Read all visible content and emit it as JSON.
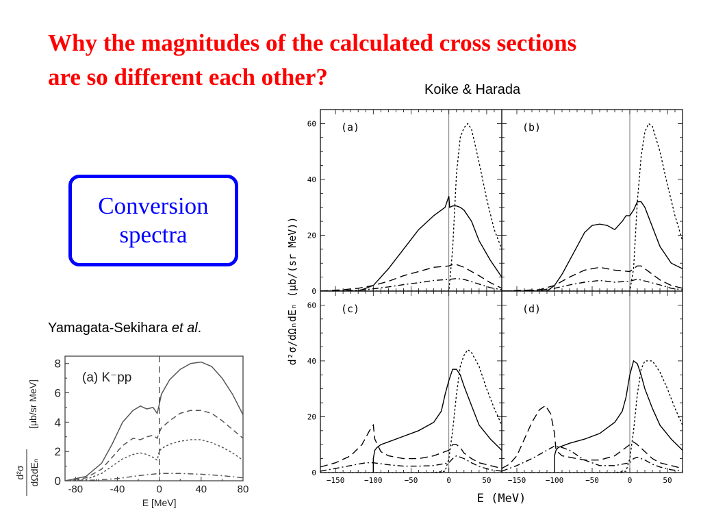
{
  "slide": {
    "title_line1": "Why the magnitudes of  the calculated cross sections",
    "title_line2": "are so different  each other?",
    "title_color": "#ff0000",
    "box_line1": "Conversion",
    "box_line2": "spectra",
    "box_color": "#0000ff",
    "credit_koike": "Koike & Harada",
    "credit_yamagata_main": "Yamagata-Sekihara ",
    "credit_yamagata_etal": "et al",
    "credit_yamagata_end": "."
  },
  "chart_data": [
    {
      "id": "koike-harada",
      "type": "line",
      "xlabel": "E (MeV)",
      "ylabel": "d²σ/dΩₙdEₙ (μb/(sr MeV))",
      "xlim": [
        -170,
        70
      ],
      "ylim": [
        0,
        65
      ],
      "xticks": [
        -150,
        -100,
        -50,
        0,
        50
      ],
      "yticks": [
        0,
        20,
        40,
        60
      ],
      "reference_line_x": 0,
      "grid": false,
      "panels": [
        {
          "label": "(a)",
          "series": [
            {
              "style": "solid",
              "x": [
                -170,
                -120,
                -100,
                -80,
                -60,
                -40,
                -20,
                -5,
                0,
                1,
                5,
                10,
                15,
                20,
                30,
                40,
                55,
                70
              ],
              "y": [
                0,
                0,
                2,
                8,
                15,
                22,
                27,
                30,
                34,
                30,
                30.5,
                30.5,
                30,
                29,
                25,
                18,
                11,
                5
              ]
            },
            {
              "style": "dashed",
              "x": [
                -170,
                -140,
                -120,
                -100,
                -80,
                -60,
                -40,
                -20,
                0,
                5,
                10,
                20,
                40,
                55,
                70
              ],
              "y": [
                0,
                0.5,
                1,
                2,
                3.5,
                5.5,
                7,
                8.5,
                9,
                9.5,
                9.5,
                8.5,
                5.5,
                3,
                1
              ]
            },
            {
              "style": "dashdot",
              "x": [
                -170,
                -120,
                -100,
                -80,
                -60,
                -40,
                -20,
                0,
                10,
                20,
                40,
                55,
                70
              ],
              "y": [
                0,
                0.3,
                0.8,
                1.5,
                2.3,
                3,
                3.8,
                4.2,
                4.5,
                4.2,
                2.5,
                1.2,
                0.5
              ]
            },
            {
              "style": "dotted",
              "x": [
                -170,
                0,
                5,
                10,
                15,
                20,
                25,
                30,
                40,
                50,
                60,
                70
              ],
              "y": [
                0,
                0,
                15,
                42,
                55,
                58.5,
                60,
                58,
                46,
                33,
                22,
                15
              ]
            }
          ]
        },
        {
          "label": "(b)",
          "series": [
            {
              "style": "solid",
              "x": [
                -170,
                -110,
                -100,
                -90,
                -80,
                -70,
                -60,
                -50,
                -40,
                -30,
                -20,
                -10,
                -5,
                0,
                5,
                10,
                15,
                20,
                30,
                40,
                55,
                70
              ],
              "y": [
                0,
                0,
                2,
                6,
                11,
                16,
                21,
                23.5,
                24,
                23.5,
                22,
                25,
                27,
                27,
                29,
                32,
                32,
                30,
                23,
                16,
                10,
                8
              ]
            },
            {
              "style": "dashed",
              "x": [
                -170,
                -120,
                -100,
                -80,
                -60,
                -40,
                -20,
                0,
                5,
                10,
                15,
                20,
                30,
                40,
                55,
                70
              ],
              "y": [
                0,
                0.5,
                2,
                5,
                7.5,
                8.5,
                7.5,
                7,
                8,
                9,
                9,
                8,
                6,
                4,
                2,
                1
              ]
            },
            {
              "style": "dashdot",
              "x": [
                -170,
                -120,
                -100,
                -80,
                -60,
                -40,
                -20,
                0,
                10,
                20,
                40,
                55,
                70
              ],
              "y": [
                0,
                0.3,
                1,
                2.2,
                3.2,
                3.8,
                3.2,
                3.5,
                4.3,
                3.6,
                2.2,
                1,
                0.5
              ]
            },
            {
              "style": "dotted",
              "x": [
                -170,
                0,
                5,
                10,
                15,
                20,
                25,
                30,
                40,
                50,
                60,
                70
              ],
              "y": [
                0,
                0,
                8,
                32,
                48,
                57,
                60,
                59,
                50,
                38,
                27,
                18
              ]
            }
          ]
        },
        {
          "label": "(c)",
          "series": [
            {
              "style": "solid",
              "x": [
                -100,
                -100,
                -98,
                -95,
                -90,
                -80,
                -60,
                -40,
                -20,
                -10,
                -5,
                0,
                5,
                10,
                15,
                20,
                30,
                40,
                55,
                70
              ],
              "y": [
                0,
                5,
                8,
                9,
                10,
                11,
                13,
                15,
                18,
                22,
                28,
                33,
                37,
                37,
                35,
                31,
                24,
                17,
                12,
                8
              ]
            },
            {
              "style": "dashed",
              "x": [
                -170,
                -150,
                -130,
                -115,
                -105,
                -100,
                -98,
                -90,
                -80,
                -60,
                -40,
                -20,
                0,
                5,
                10,
                15,
                20,
                30,
                40,
                55,
                70
              ],
              "y": [
                2,
                3.5,
                6,
                10,
                15,
                17,
                12,
                7.5,
                6,
                5,
                5,
                6,
                8,
                10,
                10,
                9,
                7,
                5,
                3.5,
                2.5,
                1.5
              ]
            },
            {
              "style": "dashdot",
              "x": [
                -170,
                -150,
                -130,
                -110,
                -100,
                -80,
                -60,
                -40,
                -20,
                0,
                5,
                10,
                20,
                30,
                40,
                55,
                70
              ],
              "y": [
                0.5,
                1.5,
                2.5,
                3.5,
                3.5,
                2.8,
                2.3,
                2.3,
                2.5,
                3.5,
                5,
                6,
                5,
                3.5,
                2.2,
                1,
                0.5
              ]
            },
            {
              "style": "dotted",
              "x": [
                -170,
                -20,
                -5,
                0,
                5,
                10,
                15,
                20,
                25,
                30,
                40,
                50,
                60,
                70
              ],
              "y": [
                0,
                0,
                0.5,
                5,
                15,
                28,
                38,
                42,
                44,
                43,
                38,
                30,
                23,
                17
              ]
            }
          ]
        },
        {
          "label": "(d)",
          "series": [
            {
              "style": "solid",
              "x": [
                -100,
                -100,
                -98,
                -95,
                -90,
                -80,
                -60,
                -40,
                -20,
                -10,
                -5,
                0,
                5,
                10,
                15,
                20,
                30,
                40,
                55,
                70
              ],
              "y": [
                0,
                6,
                8,
                9,
                9.5,
                10.5,
                12,
                14,
                18,
                22,
                27,
                35,
                40,
                39,
                35,
                30,
                23,
                17,
                12,
                8
              ]
            },
            {
              "style": "dashed",
              "x": [
                -170,
                -160,
                -150,
                -140,
                -130,
                -120,
                -112,
                -105,
                -100,
                -98,
                -90,
                -80,
                -60,
                -40,
                -20,
                -10,
                0,
                5,
                10,
                20,
                30,
                40,
                55,
                70
              ],
              "y": [
                1.5,
                3,
                6,
                12,
                18,
                22.5,
                24,
                21,
                14,
                8,
                6,
                5.5,
                4.5,
                4.5,
                6,
                8,
                10,
                11,
                10,
                7.5,
                5,
                3.5,
                2.5,
                1.5
              ]
            },
            {
              "style": "dashdot",
              "x": [
                -170,
                -150,
                -130,
                -110,
                -100,
                -90,
                -80,
                -60,
                -40,
                -20,
                0,
                5,
                10,
                20,
                30,
                40,
                55,
                70
              ],
              "y": [
                0.5,
                2.5,
                5,
                8,
                9.5,
                9,
                8,
                4.5,
                2.5,
                2.5,
                3.5,
                5,
                5.5,
                4.5,
                3,
                2,
                1,
                0.5
              ]
            },
            {
              "style": "dotted",
              "x": [
                -170,
                -20,
                -5,
                0,
                5,
                10,
                15,
                20,
                25,
                30,
                40,
                50,
                60,
                70
              ],
              "y": [
                0,
                0,
                0.5,
                5,
                15,
                28,
                37,
                40,
                40,
                40,
                36,
                30,
                23,
                17
              ]
            }
          ]
        }
      ]
    },
    {
      "id": "yamagata-sekihara",
      "type": "line",
      "panel_label": "(a)",
      "panel_label_particle": "K⁻pp",
      "xlabel": "E [MeV]",
      "ylabel_upper": "[μb/sr MeV]",
      "ylabel_fraction_num": "d²σ",
      "ylabel_fraction_den": "dΩdEₙ",
      "xlim": [
        -90,
        80
      ],
      "ylim": [
        0,
        8.5
      ],
      "xticks": [
        -80,
        -40,
        0,
        40,
        80
      ],
      "yticks": [
        0,
        2,
        4,
        6,
        8
      ],
      "reference_line_x": 0,
      "grid": false,
      "series": [
        {
          "style": "solid",
          "x": [
            -90,
            -70,
            -55,
            -45,
            -35,
            -25,
            -18,
            -12,
            -6,
            -2,
            0,
            2,
            10,
            20,
            30,
            40,
            50,
            60,
            70,
            80
          ],
          "y": [
            0,
            0.3,
            1.2,
            2.5,
            4,
            4.8,
            5.1,
            4.9,
            5,
            4.6,
            5.2,
            5.9,
            6.9,
            7.6,
            8,
            8.1,
            7.8,
            7,
            5.9,
            4.5
          ]
        },
        {
          "style": "dashed",
          "x": [
            -90,
            -70,
            -55,
            -45,
            -35,
            -25,
            -18,
            -12,
            -6,
            -2,
            0,
            2,
            10,
            20,
            30,
            40,
            50,
            60,
            70,
            80
          ],
          "y": [
            0,
            0.2,
            0.8,
            1.6,
            2.4,
            2.9,
            2.8,
            3,
            3.1,
            2.9,
            3.3,
            3.6,
            4.1,
            4.6,
            4.8,
            4.8,
            4.6,
            4.1,
            3.5,
            2.9
          ]
        },
        {
          "style": "dotted",
          "x": [
            -90,
            -70,
            -55,
            -45,
            -35,
            -25,
            -18,
            -12,
            -6,
            -2,
            0,
            2,
            10,
            20,
            30,
            40,
            50,
            60,
            70,
            80
          ],
          "y": [
            0,
            0.1,
            0.5,
            1,
            1.5,
            1.8,
            1.9,
            1.8,
            1.6,
            1.4,
            2,
            2.2,
            2.5,
            2.7,
            2.8,
            2.8,
            2.6,
            2.3,
            1.9,
            1.4
          ]
        },
        {
          "style": "dashdot",
          "x": [
            -90,
            -60,
            -40,
            -20,
            0,
            20,
            40,
            60,
            80
          ],
          "y": [
            0,
            0.05,
            0.15,
            0.35,
            0.5,
            0.5,
            0.45,
            0.35,
            0.2
          ]
        }
      ]
    }
  ]
}
